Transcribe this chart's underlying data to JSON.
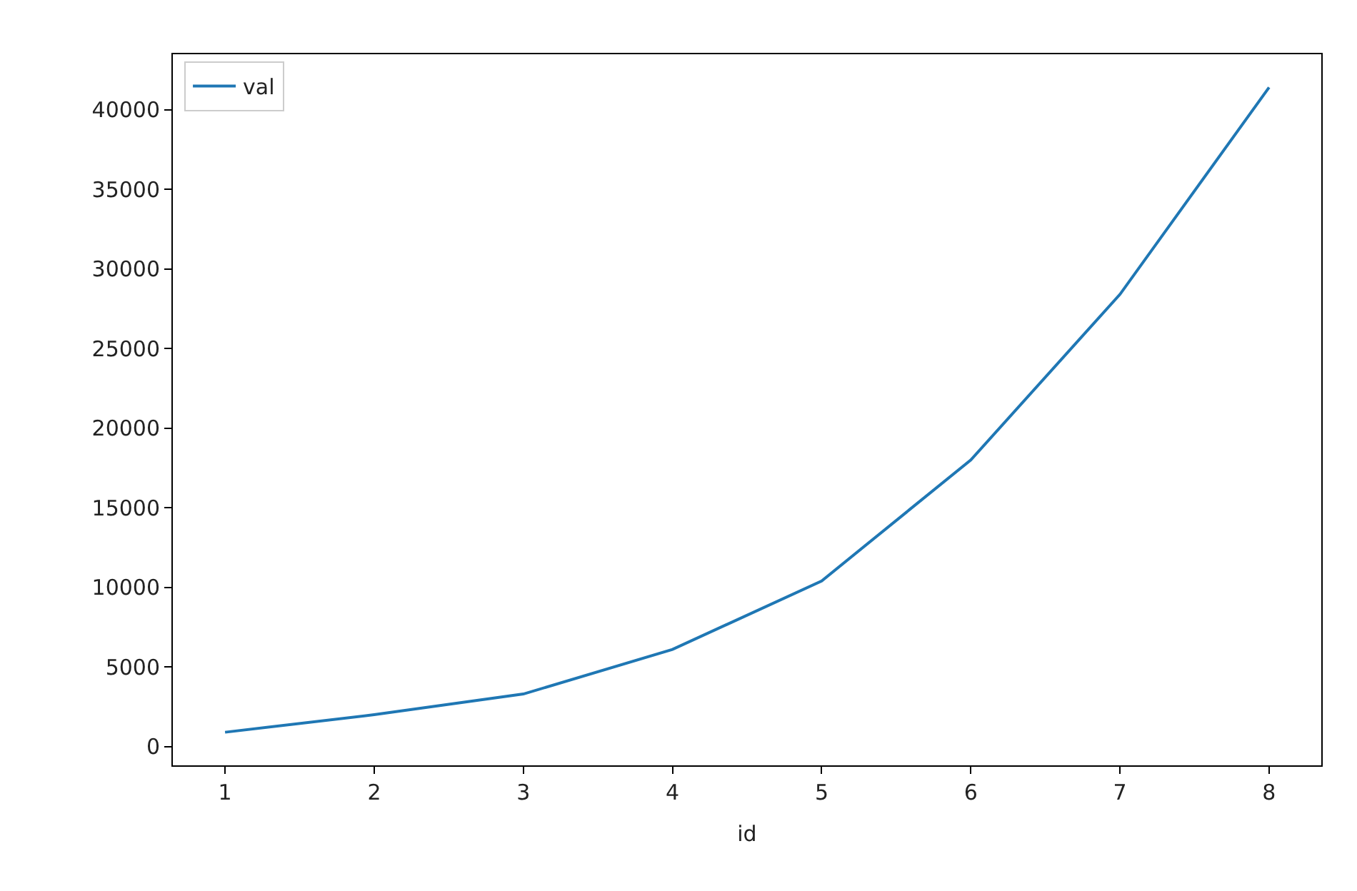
{
  "chart_data": {
    "type": "line",
    "xlabel": "id",
    "x": [
      1,
      2,
      3,
      4,
      5,
      6,
      7,
      8
    ],
    "series": [
      {
        "name": "val",
        "color": "#1f77b4",
        "values": [
          900,
          2000,
          3300,
          6100,
          10400,
          18000,
          28400,
          41400
        ]
      }
    ],
    "xlim": [
      0.65,
      8.35
    ],
    "xticks": [
      1,
      2,
      3,
      4,
      5,
      6,
      7,
      8
    ],
    "ylim": [
      -1180,
      43480
    ],
    "yticks": [
      0,
      5000,
      10000,
      15000,
      20000,
      25000,
      30000,
      35000,
      40000
    ],
    "legend": "top left",
    "marker": "none",
    "line_style": "solid"
  }
}
